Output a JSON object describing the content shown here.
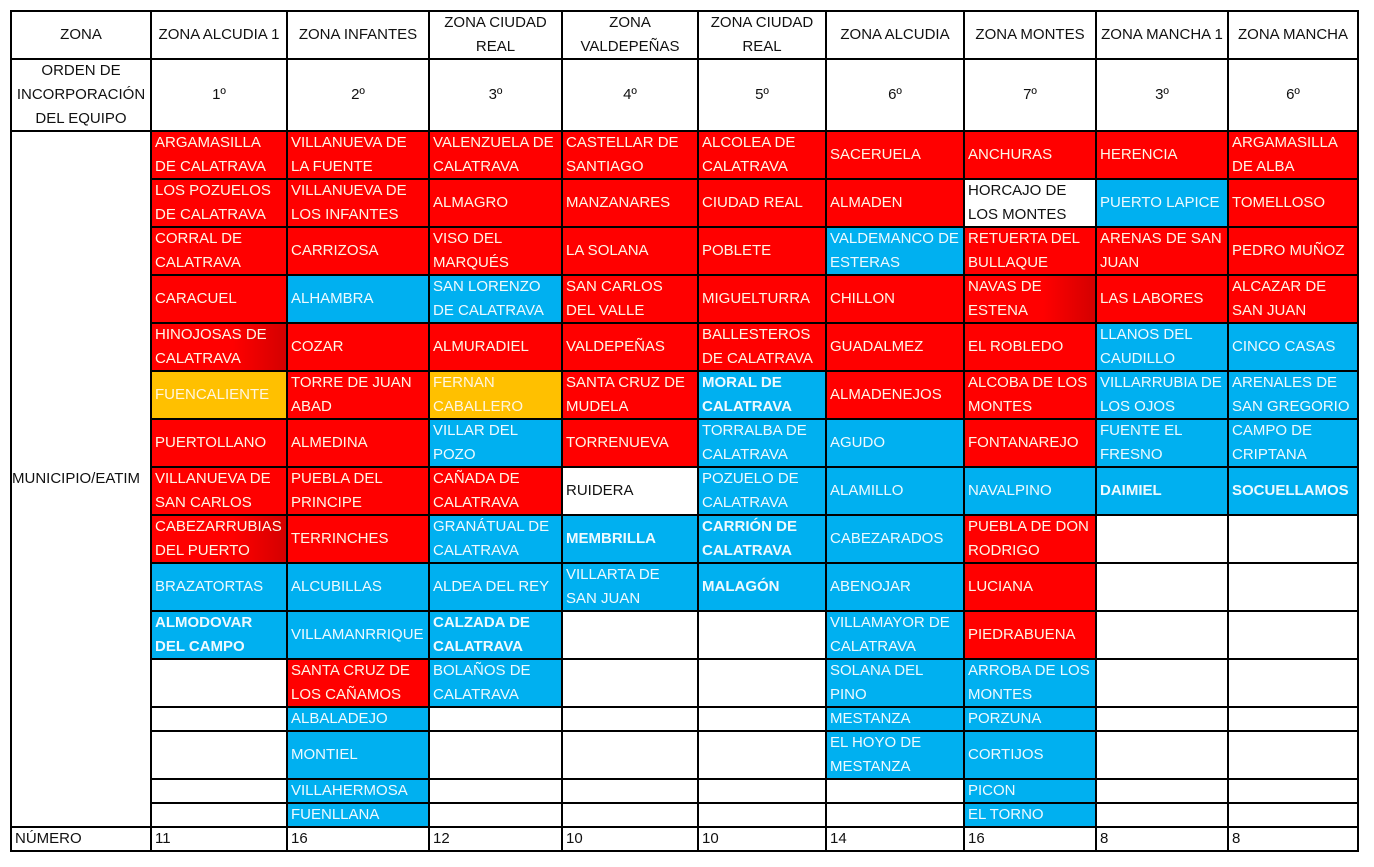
{
  "header": {
    "zona_label": "ZONA",
    "orden_label": "ORDEN DE INCORPORACIÓN DEL EQUIPO",
    "municipio_label": "MUNICIPIO/EATIM",
    "numero_label": "NÚMERO"
  },
  "colors": {
    "red": "#ff0000",
    "blue": "#00b0f0",
    "orange": "#ffc000",
    "white": "#ffffff"
  },
  "columns": [
    {
      "zona": "ZONA ALCUDIA 1",
      "orden": "1º",
      "numero": "11",
      "cells": [
        {
          "name": "ARGAMASILLA DE CALATRAVA",
          "color": "red"
        },
        {
          "name": "LOS POZUELOS DE CALATRAVA",
          "color": "red"
        },
        {
          "name": "CORRAL DE CALATRAVA",
          "color": "red"
        },
        {
          "name": "CARACUEL",
          "color": "red"
        },
        {
          "name": "HINOJOSAS DE CALATRAVA",
          "color": "red",
          "shade": "dark"
        },
        {
          "name": "FUENCALIENTE",
          "color": "orange"
        },
        {
          "name": "PUERTOLLANO",
          "color": "red"
        },
        {
          "name": "VILLANUEVA DE SAN CARLOS",
          "color": "red"
        },
        {
          "name": "CABEZARRUBIAS DEL PUERTO",
          "color": "red",
          "shade": "dark"
        },
        {
          "name": "BRAZATORTAS",
          "color": "blue"
        },
        {
          "name": "ALMODOVAR DEL CAMPO",
          "color": "blue",
          "bold": true
        }
      ]
    },
    {
      "zona": "ZONA INFANTES",
      "orden": "2º",
      "numero": "16",
      "cells": [
        {
          "name": "VILLANUEVA DE LA FUENTE",
          "color": "red"
        },
        {
          "name": "VILLANUEVA DE LOS INFANTES",
          "color": "red"
        },
        {
          "name": "CARRIZOSA",
          "color": "red"
        },
        {
          "name": "ALHAMBRA",
          "color": "blue"
        },
        {
          "name": "COZAR",
          "color": "red"
        },
        {
          "name": "TORRE DE JUAN ABAD",
          "color": "red"
        },
        {
          "name": "ALMEDINA",
          "color": "red"
        },
        {
          "name": "PUEBLA DEL PRINCIPE",
          "color": "red"
        },
        {
          "name": "TERRINCHES",
          "color": "red"
        },
        {
          "name": "ALCUBILLAS",
          "color": "blue"
        },
        {
          "name": "VILLAMANRRIQUE",
          "color": "blue"
        },
        {
          "name": "SANTA CRUZ DE LOS CAÑAMOS",
          "color": "red"
        },
        {
          "name": "ALBALADEJO",
          "color": "blue"
        },
        {
          "name": "MONTIEL",
          "color": "blue"
        },
        {
          "name": "VILLAHERMOSA",
          "color": "blue"
        },
        {
          "name": "FUENLLANA",
          "color": "blue"
        }
      ]
    },
    {
      "zona": "ZONA CIUDAD REAL",
      "orden": "3º",
      "numero": "12",
      "cells": [
        {
          "name": "VALENZUELA DE CALATRAVA",
          "color": "red"
        },
        {
          "name": "ALMAGRO",
          "color": "red"
        },
        {
          "name": "VISO DEL MARQUÉS",
          "color": "red"
        },
        {
          "name": "SAN LORENZO DE CALATRAVA",
          "color": "blue"
        },
        {
          "name": "ALMURADIEL",
          "color": "red"
        },
        {
          "name": "FERNAN CABALLERO",
          "color": "orange"
        },
        {
          "name": "VILLAR DEL POZO",
          "color": "blue"
        },
        {
          "name": "CAÑADA DE CALATRAVA",
          "color": "red"
        },
        {
          "name": "GRANÁTUAL DE CALATRAVA",
          "color": "blue"
        },
        {
          "name": "ALDEA DEL REY",
          "color": "blue"
        },
        {
          "name": "CALZADA DE CALATRAVA",
          "color": "blue",
          "bold": true
        },
        {
          "name": "BOLAÑOS DE CALATRAVA",
          "color": "blue"
        }
      ]
    },
    {
      "zona": "ZONA VALDEPEÑAS",
      "orden": "4º",
      "numero": "10",
      "cells": [
        {
          "name": "CASTELLAR DE SANTIAGO",
          "color": "red"
        },
        {
          "name": "MANZANARES",
          "color": "red"
        },
        {
          "name": "LA SOLANA",
          "color": "red"
        },
        {
          "name": "SAN CARLOS DEL VALLE",
          "color": "red"
        },
        {
          "name": "VALDEPEÑAS",
          "color": "red"
        },
        {
          "name": "SANTA CRUZ DE MUDELA",
          "color": "red"
        },
        {
          "name": "TORRENUEVA",
          "color": "red"
        },
        {
          "name": "RUIDERA",
          "color": "white"
        },
        {
          "name": "MEMBRILLA",
          "color": "blue",
          "bold": true
        },
        {
          "name": "VILLARTA DE SAN JUAN",
          "color": "blue"
        }
      ]
    },
    {
      "zona": "ZONA CIUDAD REAL",
      "orden": "5º",
      "numero": "10",
      "cells": [
        {
          "name": "ALCOLEA DE CALATRAVA",
          "color": "red"
        },
        {
          "name": "CIUDAD REAL",
          "color": "red"
        },
        {
          "name": "POBLETE",
          "color": "red"
        },
        {
          "name": "MIGUELTURRA",
          "color": "red"
        },
        {
          "name": "BALLESTEROS DE CALATRAVA",
          "color": "red"
        },
        {
          "name": "MORAL DE CALATRAVA",
          "color": "blue",
          "bold": true
        },
        {
          "name": "TORRALBA DE CALATRAVA",
          "color": "blue"
        },
        {
          "name": "POZUELO DE CALATRAVA",
          "color": "blue"
        },
        {
          "name": "CARRIÓN DE CALATRAVA",
          "color": "blue",
          "bold": true
        },
        {
          "name": "MALAGÓN",
          "color": "blue",
          "bold": true
        }
      ]
    },
    {
      "zona": "ZONA ALCUDIA",
      "orden": "6º",
      "numero": "14",
      "cells": [
        {
          "name": "SACERUELA",
          "color": "red"
        },
        {
          "name": "ALMADEN",
          "color": "red"
        },
        {
          "name": "VALDEMANCO DE ESTERAS",
          "color": "blue"
        },
        {
          "name": "CHILLON",
          "color": "red"
        },
        {
          "name": "GUADALMEZ",
          "color": "red"
        },
        {
          "name": "ALMADENEJOS",
          "color": "red"
        },
        {
          "name": "AGUDO",
          "color": "blue"
        },
        {
          "name": "ALAMILLO",
          "color": "blue"
        },
        {
          "name": "CABEZARADOS",
          "color": "blue"
        },
        {
          "name": "ABENOJAR",
          "color": "blue"
        },
        {
          "name": "VILLAMAYOR DE CALATRAVA",
          "color": "blue"
        },
        {
          "name": "SOLANA DEL PINO",
          "color": "blue"
        },
        {
          "name": "MESTANZA",
          "color": "blue"
        },
        {
          "name": "EL HOYO DE MESTANZA",
          "color": "blue"
        }
      ]
    },
    {
      "zona": "ZONA MONTES",
      "orden": "7º",
      "numero": "16",
      "cells": [
        {
          "name": "ANCHURAS",
          "color": "red"
        },
        {
          "name": "HORCAJO DE LOS MONTES",
          "color": "white"
        },
        {
          "name": "RETUERTA DEL BULLAQUE",
          "color": "red"
        },
        {
          "name": "NAVAS DE ESTENA",
          "color": "red",
          "shade": "dark"
        },
        {
          "name": "EL ROBLEDO",
          "color": "red"
        },
        {
          "name": "ALCOBA DE LOS MONTES",
          "color": "red"
        },
        {
          "name": "FONTANAREJO",
          "color": "red"
        },
        {
          "name": "NAVALPINO",
          "color": "blue"
        },
        {
          "name": "PUEBLA DE DON RODRIGO",
          "color": "red"
        },
        {
          "name": "LUCIANA",
          "color": "red"
        },
        {
          "name": "PIEDRABUENA",
          "color": "red"
        },
        {
          "name": "ARROBA DE LOS MONTES",
          "color": "blue"
        },
        {
          "name": "PORZUNA",
          "color": "blue"
        },
        {
          "name": "CORTIJOS",
          "color": "blue"
        },
        {
          "name": "PICON",
          "color": "blue"
        },
        {
          "name": "EL TORNO",
          "color": "blue"
        }
      ]
    },
    {
      "zona": "ZONA MANCHA 1",
      "orden": "3º",
      "numero": "8",
      "cells": [
        {
          "name": "HERENCIA",
          "color": "red"
        },
        {
          "name": "PUERTO LAPICE",
          "color": "blue"
        },
        {
          "name": "ARENAS DE SAN JUAN",
          "color": "red"
        },
        {
          "name": "LAS LABORES",
          "color": "red"
        },
        {
          "name": "LLANOS DEL CAUDILLO",
          "color": "blue"
        },
        {
          "name": "VILLARRUBIA DE LOS OJOS",
          "color": "blue"
        },
        {
          "name": "FUENTE EL FRESNO",
          "color": "blue"
        },
        {
          "name": "DAIMIEL",
          "color": "blue",
          "bold": true
        }
      ]
    },
    {
      "zona": "ZONA MANCHA",
      "orden": "6º",
      "numero": "8",
      "cells": [
        {
          "name": "ARGAMASILLA DE ALBA",
          "color": "red"
        },
        {
          "name": "TOMELLOSO",
          "color": "red"
        },
        {
          "name": "PEDRO MUÑOZ",
          "color": "red"
        },
        {
          "name": "ALCAZAR DE SAN JUAN",
          "color": "red"
        },
        {
          "name": "CINCO CASAS",
          "color": "blue"
        },
        {
          "name": "ARENALES DE SAN GREGORIO",
          "color": "blue"
        },
        {
          "name": "CAMPO DE CRIPTANA",
          "color": "blue"
        },
        {
          "name": "SOCUELLAMOS",
          "color": "blue",
          "bold": true
        }
      ]
    }
  ]
}
